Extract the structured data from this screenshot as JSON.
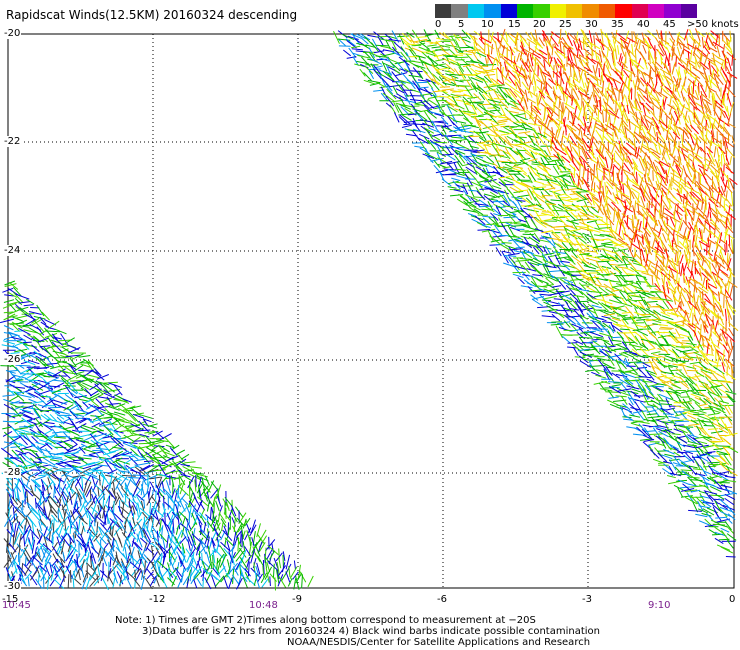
{
  "title": "Rapidscat Winds(12.5KM) 20160324 descending",
  "legend": {
    "labels": [
      "0",
      "5",
      "10",
      "15",
      "20",
      "25",
      "30",
      "35",
      "40",
      "45",
      ">50 knots"
    ],
    "colors": [
      "#3c3c3c",
      "#808080",
      "#00c8f0",
      "#0090f0",
      "#0000d8",
      "#00b400",
      "#38d000",
      "#f0f000",
      "#f0c000",
      "#f08c00",
      "#f05a00",
      "#ff0000",
      "#e00050",
      "#d000c0",
      "#9000d0",
      "#5a00a0"
    ]
  },
  "map": {
    "lat_labels": [
      "-20",
      "-22",
      "-24",
      "-26",
      "-28",
      "-30"
    ],
    "lon_labels": [
      "-15",
      "-12",
      "-9",
      "-6",
      "-3",
      "0"
    ],
    "time_labels": [
      "10:45",
      "10:48",
      "9:10"
    ],
    "swaths": [
      {
        "name": "east-swath",
        "dominant_speed_knots": "20-35"
      },
      {
        "name": "west-swath",
        "dominant_speed_knots": "5-20"
      }
    ]
  },
  "notes": [
    "Note: 1) Times are GMT 2)Times along bottom correspond to measurement at −20S",
    "3)Data buffer is 22 hrs from 20160324 4) Black wind barbs indicate possible contamination",
    "NOAA/NESDIS/Center for Satellite Applications and Research"
  ]
}
